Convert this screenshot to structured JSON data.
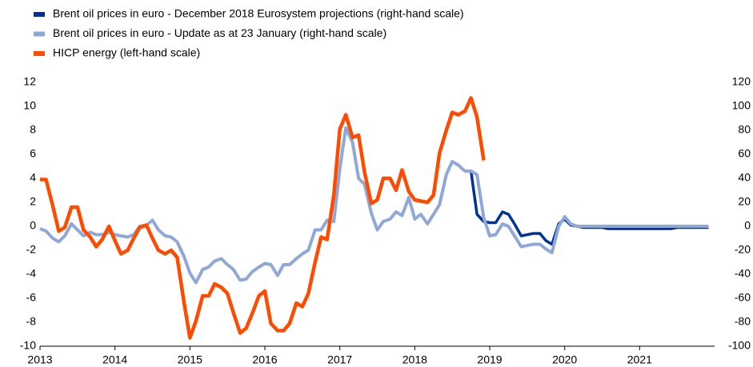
{
  "chart_data": {
    "type": "line",
    "x": [
      2013,
      2013.08,
      2013.17,
      2013.25,
      2013.33,
      2013.42,
      2013.5,
      2013.58,
      2013.67,
      2013.75,
      2013.83,
      2013.92,
      2014,
      2014.08,
      2014.17,
      2014.25,
      2014.33,
      2014.42,
      2014.5,
      2014.58,
      2014.67,
      2014.75,
      2014.83,
      2014.92,
      2015,
      2015.08,
      2015.17,
      2015.25,
      2015.33,
      2015.42,
      2015.5,
      2015.58,
      2015.67,
      2015.75,
      2015.83,
      2015.92,
      2016,
      2016.08,
      2016.17,
      2016.25,
      2016.33,
      2016.42,
      2016.5,
      2016.58,
      2016.67,
      2016.75,
      2016.83,
      2016.92,
      2017,
      2017.08,
      2017.17,
      2017.25,
      2017.33,
      2017.42,
      2017.5,
      2017.58,
      2017.67,
      2017.75,
      2017.83,
      2017.92,
      2018,
      2018.08,
      2018.17,
      2018.25,
      2018.33,
      2018.42,
      2018.5,
      2018.58,
      2018.67,
      2018.75,
      2018.83,
      2018.92,
      2019,
      2019.08,
      2019.17,
      2019.25,
      2019.33,
      2019.42,
      2019.5,
      2019.58,
      2019.67,
      2019.75,
      2019.83,
      2019.92,
      2020,
      2020.08,
      2020.17,
      2020.25,
      2020.33,
      2020.42,
      2020.5,
      2020.58,
      2020.67,
      2020.75,
      2020.83,
      2020.92,
      2021,
      2021.08,
      2021.17,
      2021.25,
      2021.33,
      2021.42,
      2021.5,
      2021.58,
      2021.67,
      2021.75,
      2021.83,
      2021.92
    ],
    "series": [
      {
        "name": "Brent oil prices in euro - December 2018 Eurosystem projections (right-hand scale)",
        "color": "#003299",
        "axis": "y2",
        "values": [
          null,
          null,
          null,
          null,
          null,
          null,
          null,
          null,
          null,
          null,
          null,
          null,
          null,
          null,
          null,
          null,
          null,
          null,
          null,
          null,
          null,
          null,
          null,
          null,
          null,
          null,
          null,
          null,
          null,
          null,
          null,
          null,
          null,
          null,
          null,
          null,
          null,
          null,
          null,
          null,
          null,
          null,
          null,
          null,
          null,
          null,
          null,
          null,
          null,
          null,
          null,
          null,
          null,
          null,
          null,
          null,
          null,
          null,
          null,
          null,
          null,
          null,
          null,
          null,
          null,
          null,
          null,
          null,
          null,
          46,
          10,
          4,
          3,
          3,
          12,
          10,
          2,
          -8,
          -7,
          -6,
          -6,
          -12,
          -15,
          2,
          6,
          1,
          0,
          -1,
          -1,
          -1,
          -1,
          -2,
          -2,
          -2,
          -2,
          -2,
          -2,
          -2,
          -2,
          -2,
          -2,
          -2,
          -1,
          -1,
          -1,
          -1,
          -1,
          -1
        ]
      },
      {
        "name": "Brent oil prices in euro - Update as at 23 January  (right-hand scale)",
        "color": "#8fa8d8",
        "axis": "y2",
        "values": [
          -2,
          -4,
          -10,
          -13,
          -8,
          2,
          -3,
          -8,
          -5,
          -7,
          -7,
          -5,
          -7,
          -8,
          -9,
          -7,
          0,
          1,
          5,
          -3,
          -8,
          -9,
          -13,
          -25,
          -39,
          -47,
          -36,
          -34,
          -29,
          -27,
          -32,
          -36,
          -45,
          -44,
          -38,
          -34,
          -31,
          -32,
          -41,
          -32,
          -32,
          -27,
          -23,
          -20,
          -3,
          -3,
          5,
          4,
          48,
          82,
          70,
          40,
          35,
          11,
          -3,
          4,
          6,
          12,
          9,
          24,
          6,
          10,
          2,
          10,
          18,
          43,
          54,
          51,
          46,
          46,
          43,
          7,
          -8,
          -7,
          2,
          0,
          -8,
          -17,
          -16,
          -15,
          -15,
          -19,
          -22,
          0,
          8,
          2,
          0,
          0,
          0,
          0,
          0,
          0,
          0,
          0,
          0,
          0,
          0,
          0,
          0,
          0,
          0,
          0,
          0,
          0,
          0,
          0,
          0,
          0
        ]
      },
      {
        "name": "HICP energy (left-hand scale)",
        "color": "#ff4b00",
        "axis": "y",
        "values": [
          3.9,
          3.9,
          1.7,
          -0.4,
          -0.1,
          1.6,
          1.6,
          -0.3,
          -0.9,
          -1.7,
          -1.1,
          0.0,
          -1.2,
          -2.3,
          -2.0,
          -1.0,
          -0.1,
          0.1,
          -1.0,
          -2.0,
          -2.3,
          -2.0,
          -2.6,
          -6.3,
          -9.3,
          -7.9,
          -5.8,
          -5.8,
          -4.8,
          -5.1,
          -5.6,
          -7.2,
          -8.9,
          -8.5,
          -7.3,
          -5.8,
          -5.4,
          -8.1,
          -8.7,
          -8.7,
          -8.1,
          -6.4,
          -6.7,
          -5.6,
          -3.0,
          -0.9,
          -1.1,
          2.6,
          8.1,
          9.3,
          7.4,
          7.6,
          4.5,
          1.9,
          2.2,
          4.0,
          4.0,
          3.0,
          4.7,
          2.9,
          2.2,
          2.1,
          2.0,
          2.6,
          6.1,
          8.0,
          9.5,
          9.3,
          9.6,
          10.7,
          9.1,
          5.5,
          null,
          null,
          null,
          null,
          null,
          null,
          null,
          null,
          null,
          null,
          null,
          null,
          null,
          null,
          null,
          null,
          null,
          null,
          null,
          null,
          null,
          null,
          null,
          null,
          null,
          null,
          null,
          null,
          null,
          null,
          null,
          null,
          null,
          null,
          null,
          null
        ]
      }
    ],
    "xlim": [
      2013,
      2022
    ],
    "xticks": [
      2013,
      2014,
      2015,
      2016,
      2017,
      2018,
      2019,
      2020,
      2021
    ],
    "ylim": [
      -10,
      12
    ],
    "yticks": [
      -10,
      -8,
      -6,
      -4,
      -2,
      0,
      2,
      4,
      6,
      8,
      10,
      12
    ],
    "y2lim": [
      -100,
      120
    ],
    "y2ticks": [
      -100,
      -80,
      -60,
      -40,
      -20,
      0,
      20,
      40,
      60,
      80,
      100,
      120
    ],
    "grid": false,
    "legend": "top-left"
  }
}
